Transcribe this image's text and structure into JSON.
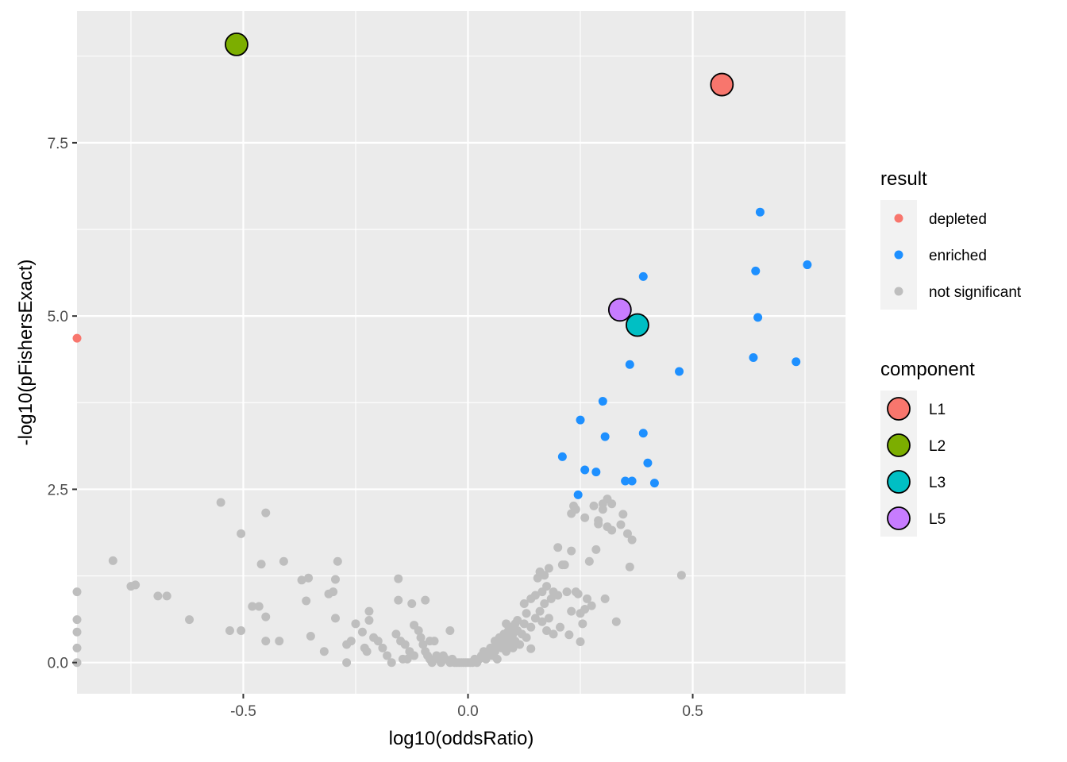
{
  "chart_data": {
    "type": "scatter",
    "xlabel": "log10(oddsRatio)",
    "ylabel": "-log10(pFishersExact)",
    "xlim": [
      -0.87,
      0.84
    ],
    "ylim": [
      -0.45,
      9.4
    ],
    "x_ticks": [
      -0.5,
      0.0,
      0.5
    ],
    "x_tick_labels": [
      "-0.5",
      "0.0",
      "0.5"
    ],
    "y_ticks": [
      0.0,
      2.5,
      5.0,
      7.5
    ],
    "y_tick_labels": [
      "0.0",
      "2.5",
      "5.0",
      "7.5"
    ],
    "grid": true,
    "legend_position": "right",
    "colors": {
      "panel_background": "#ebebeb",
      "grid": "#ffffff",
      "depleted": "#f8766d",
      "enriched": "#1e90ff",
      "not_significant": "#bebebe",
      "L1": "#f8766d",
      "L2": "#7cae00",
      "L3": "#00bfc4",
      "L5": "#c77cff"
    },
    "legends": [
      {
        "title": "result",
        "entries": [
          {
            "label": "depleted",
            "color": "#f8766d"
          },
          {
            "label": "enriched",
            "color": "#1e90ff"
          },
          {
            "label": "not significant",
            "color": "#bebebe"
          }
        ]
      },
      {
        "title": "component",
        "entries": [
          {
            "label": "L1",
            "color": "#f8766d"
          },
          {
            "label": "L2",
            "color": "#7cae00"
          },
          {
            "label": "L3",
            "color": "#00bfc4"
          },
          {
            "label": "L5",
            "color": "#c77cff"
          }
        ]
      }
    ],
    "series": [
      {
        "name": "not significant",
        "color": "#bebebe",
        "points": [
          [
            -0.87,
            1.02
          ],
          [
            -0.87,
            0.62
          ],
          [
            -0.87,
            0.44
          ],
          [
            -0.87,
            0.21
          ],
          [
            -0.87,
            0.0
          ],
          [
            -0.79,
            1.47
          ],
          [
            -0.75,
            1.1
          ],
          [
            -0.74,
            1.12
          ],
          [
            -0.69,
            0.96
          ],
          [
            -0.67,
            0.96
          ],
          [
            -0.62,
            0.62
          ],
          [
            -0.55,
            2.31
          ],
          [
            -0.53,
            0.46
          ],
          [
            -0.505,
            1.86
          ],
          [
            -0.505,
            0.46
          ],
          [
            -0.48,
            0.81
          ],
          [
            -0.465,
            0.81
          ],
          [
            -0.46,
            1.42
          ],
          [
            -0.45,
            2.16
          ],
          [
            -0.45,
            0.66
          ],
          [
            -0.45,
            0.31
          ],
          [
            -0.42,
            0.31
          ],
          [
            -0.41,
            1.46
          ],
          [
            -0.37,
            1.19
          ],
          [
            -0.36,
            0.89
          ],
          [
            -0.355,
            1.22
          ],
          [
            -0.35,
            0.38
          ],
          [
            -0.32,
            0.16
          ],
          [
            -0.31,
            0.99
          ],
          [
            -0.3,
            1.02
          ],
          [
            -0.295,
            0.64
          ],
          [
            -0.295,
            1.2
          ],
          [
            -0.29,
            1.46
          ],
          [
            -0.27,
            0.0
          ],
          [
            -0.27,
            0.26
          ],
          [
            -0.26,
            0.31
          ],
          [
            -0.25,
            0.56
          ],
          [
            -0.235,
            0.44
          ],
          [
            -0.23,
            0.21
          ],
          [
            -0.225,
            0.16
          ],
          [
            -0.22,
            0.61
          ],
          [
            -0.22,
            0.74
          ],
          [
            -0.21,
            0.36
          ],
          [
            -0.2,
            0.31
          ],
          [
            -0.19,
            0.21
          ],
          [
            -0.18,
            0.1
          ],
          [
            -0.17,
            0.0
          ],
          [
            -0.16,
            0.41
          ],
          [
            -0.155,
            0.9
          ],
          [
            -0.15,
            0.31
          ],
          [
            -0.14,
            0.26
          ],
          [
            -0.135,
            0.05
          ],
          [
            -0.13,
            0.16
          ],
          [
            -0.125,
            0.85
          ],
          [
            -0.12,
            0.54
          ],
          [
            -0.11,
            0.46
          ],
          [
            -0.105,
            0.36
          ],
          [
            -0.1,
            0.26
          ],
          [
            -0.095,
            0.16
          ],
          [
            -0.09,
            0.1
          ],
          [
            -0.085,
            0.05
          ],
          [
            -0.08,
            0.0
          ],
          [
            -0.075,
            0.31
          ],
          [
            -0.07,
            0.1
          ],
          [
            -0.065,
            0.05
          ],
          [
            -0.06,
            0.0
          ],
          [
            -0.055,
            0.1
          ],
          [
            -0.05,
            0.05
          ],
          [
            -0.04,
            0.0
          ],
          [
            -0.04,
            0.46
          ],
          [
            -0.035,
            0.05
          ],
          [
            -0.03,
            0.0
          ],
          [
            -0.025,
            0.0
          ],
          [
            -0.02,
            0.0
          ],
          [
            -0.015,
            0.0
          ],
          [
            -0.01,
            0.0
          ],
          [
            -0.005,
            0.0
          ],
          [
            0.0,
            0.0
          ],
          [
            0.005,
            0.0
          ],
          [
            0.01,
            0.0
          ],
          [
            0.015,
            0.05
          ],
          [
            -0.155,
            1.21
          ],
          [
            -0.095,
            0.9
          ],
          [
            -0.145,
            0.05
          ],
          [
            -0.12,
            0.1
          ],
          [
            -0.085,
            0.31
          ],
          [
            0.02,
            0.0
          ],
          [
            0.025,
            0.05
          ],
          [
            0.03,
            0.1
          ],
          [
            0.035,
            0.16
          ],
          [
            0.04,
            0.05
          ],
          [
            0.045,
            0.1
          ],
          [
            0.05,
            0.21
          ],
          [
            0.055,
            0.1
          ],
          [
            0.06,
            0.16
          ],
          [
            0.06,
            0.31
          ],
          [
            0.065,
            0.05
          ],
          [
            0.065,
            0.26
          ],
          [
            0.07,
            0.36
          ],
          [
            0.075,
            0.21
          ],
          [
            0.08,
            0.31
          ],
          [
            0.08,
            0.41
          ],
          [
            0.085,
            0.16
          ],
          [
            0.085,
            0.56
          ],
          [
            0.09,
            0.26
          ],
          [
            0.09,
            0.46
          ],
          [
            0.095,
            0.36
          ],
          [
            0.095,
            0.51
          ],
          [
            0.1,
            0.41
          ],
          [
            0.1,
            0.21
          ],
          [
            0.105,
            0.31
          ],
          [
            0.105,
            0.56
          ],
          [
            0.11,
            0.46
          ],
          [
            0.11,
            0.61
          ],
          [
            0.115,
            0.26
          ],
          [
            0.12,
            0.41
          ],
          [
            0.125,
            0.56
          ],
          [
            0.125,
            0.85
          ],
          [
            0.13,
            0.36
          ],
          [
            0.13,
            0.71
          ],
          [
            0.14,
            0.2
          ],
          [
            0.14,
            0.51
          ],
          [
            0.14,
            0.92
          ],
          [
            0.15,
            0.64
          ],
          [
            0.15,
            0.97
          ],
          [
            0.155,
            1.22
          ],
          [
            0.16,
            0.74
          ],
          [
            0.16,
            1.31
          ],
          [
            0.165,
            0.59
          ],
          [
            0.165,
            1.02
          ],
          [
            0.17,
            0.85
          ],
          [
            0.17,
            1.26
          ],
          [
            0.175,
            0.46
          ],
          [
            0.175,
            1.1
          ],
          [
            0.18,
            0.64
          ],
          [
            0.18,
            1.36
          ],
          [
            0.185,
            0.92
          ],
          [
            0.19,
            1.02
          ],
          [
            0.19,
            0.41
          ],
          [
            0.2,
            1.66
          ],
          [
            0.2,
            0.97
          ],
          [
            0.205,
            0.51
          ],
          [
            0.21,
            1.41
          ],
          [
            0.215,
            1.41
          ],
          [
            0.22,
            1.02
          ],
          [
            0.225,
            0.4
          ],
          [
            0.23,
            1.61
          ],
          [
            0.23,
            0.74
          ],
          [
            0.23,
            2.15
          ],
          [
            0.235,
            2.26
          ],
          [
            0.24,
            1.02
          ],
          [
            0.24,
            2.21
          ],
          [
            0.245,
            0.99
          ],
          [
            0.25,
            0.3
          ],
          [
            0.25,
            0.71
          ],
          [
            0.255,
            0.56
          ],
          [
            0.26,
            2.09
          ],
          [
            0.26,
            0.77
          ],
          [
            0.265,
            0.92
          ],
          [
            0.27,
            1.46
          ],
          [
            0.275,
            0.82
          ],
          [
            0.28,
            2.26
          ],
          [
            0.285,
            1.63
          ],
          [
            0.29,
            2.0
          ],
          [
            0.29,
            2.05
          ],
          [
            0.3,
            2.29
          ],
          [
            0.3,
            2.21
          ],
          [
            0.305,
            0.92
          ],
          [
            0.31,
            1.96
          ],
          [
            0.31,
            2.36
          ],
          [
            0.32,
            2.29
          ],
          [
            0.32,
            1.91
          ],
          [
            0.33,
            0.59
          ],
          [
            0.34,
            1.99
          ],
          [
            0.345,
            2.14
          ],
          [
            0.355,
            1.86
          ],
          [
            0.36,
            1.38
          ],
          [
            0.365,
            1.77
          ],
          [
            0.475,
            1.26
          ]
        ]
      },
      {
        "name": "depleted",
        "color": "#f8766d",
        "points": [
          [
            -0.87,
            4.68
          ]
        ]
      },
      {
        "name": "enriched",
        "color": "#1e90ff",
        "points": [
          [
            0.21,
            2.97
          ],
          [
            0.245,
            2.42
          ],
          [
            0.25,
            3.5
          ],
          [
            0.26,
            2.78
          ],
          [
            0.285,
            2.75
          ],
          [
            0.3,
            3.77
          ],
          [
            0.305,
            3.26
          ],
          [
            0.35,
            2.62
          ],
          [
            0.36,
            4.3
          ],
          [
            0.365,
            2.62
          ],
          [
            0.39,
            3.31
          ],
          [
            0.39,
            5.57
          ],
          [
            0.4,
            2.88
          ],
          [
            0.415,
            2.59
          ],
          [
            0.47,
            4.2
          ],
          [
            0.635,
            4.4
          ],
          [
            0.64,
            5.65
          ],
          [
            0.645,
            4.98
          ],
          [
            0.65,
            6.5
          ],
          [
            0.73,
            4.34
          ],
          [
            0.755,
            5.74
          ]
        ]
      }
    ],
    "components": [
      {
        "name": "L1",
        "x": 0.565,
        "y": 8.34,
        "color": "#f8766d"
      },
      {
        "name": "L2",
        "x": -0.515,
        "y": 8.92,
        "color": "#7cae00"
      },
      {
        "name": "L3",
        "x": 0.377,
        "y": 4.87,
        "color": "#00bfc4"
      },
      {
        "name": "L5",
        "x": 0.338,
        "y": 5.09,
        "color": "#c77cff"
      }
    ]
  }
}
